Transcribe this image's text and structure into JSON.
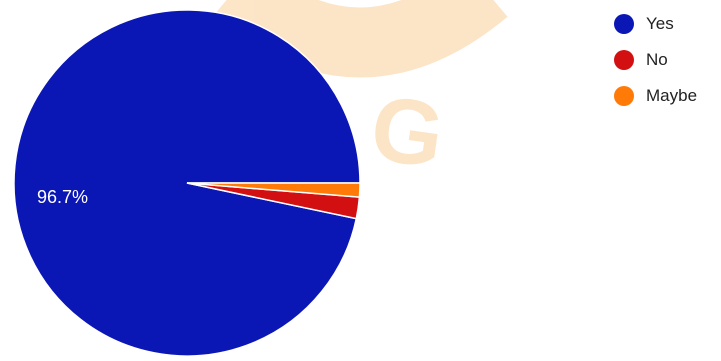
{
  "watermark": {
    "color": "#f7a23a"
  },
  "chart_data": {
    "type": "pie",
    "slices": [
      {
        "label": "Yes",
        "value": 96.7,
        "color": "#0b17b5",
        "data_label": "96.7%"
      },
      {
        "label": "No",
        "value": 2.0,
        "color": "#d21012"
      },
      {
        "label": "Maybe",
        "value": 1.3,
        "color": "#ff7a06"
      }
    ],
    "legend_position": "top-right",
    "start_angle_deg": 0,
    "direction": "counterclockwise"
  }
}
